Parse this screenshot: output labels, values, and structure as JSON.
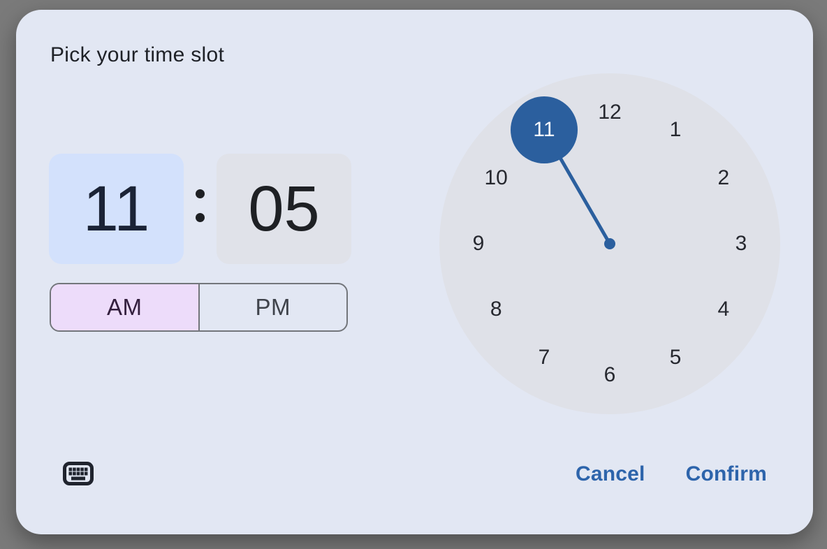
{
  "dialog": {
    "title": "Pick your time slot",
    "time": {
      "hour": "11",
      "minute": "05",
      "separator": ":",
      "active_field": "hour"
    },
    "period": {
      "am_label": "AM",
      "pm_label": "PM",
      "selected": "AM"
    },
    "clock": {
      "hours": [
        "12",
        "1",
        "2",
        "3",
        "4",
        "5",
        "6",
        "7",
        "8",
        "9",
        "10",
        "11"
      ],
      "selected_hour": "11"
    },
    "actions": {
      "cancel_label": "Cancel",
      "confirm_label": "Confirm"
    },
    "icons": {
      "keyboard": "keyboard-icon"
    },
    "colors": {
      "overlay_bg": "#7a7a7a",
      "dialog_bg": "#e2e7f3",
      "hour_field_bg": "#d3e1fc",
      "hour_field_text": "#1b2336",
      "minute_field_bg": "#e0e2e9",
      "minute_field_text": "#1e2024",
      "am_selected_bg": "#eddcfa",
      "am_text": "#331f3d",
      "pm_text": "#3f434b",
      "toggle_border": "#73767b",
      "clock_face_bg": "#dfe1e8",
      "clock_number_text": "#26282f",
      "accent_blue": "#2b5f9e",
      "selected_number_text": "#f5f7fc",
      "button_blue": "#2d64ab",
      "title_text": "#1e2127",
      "icon_dark": "#20242e"
    }
  }
}
